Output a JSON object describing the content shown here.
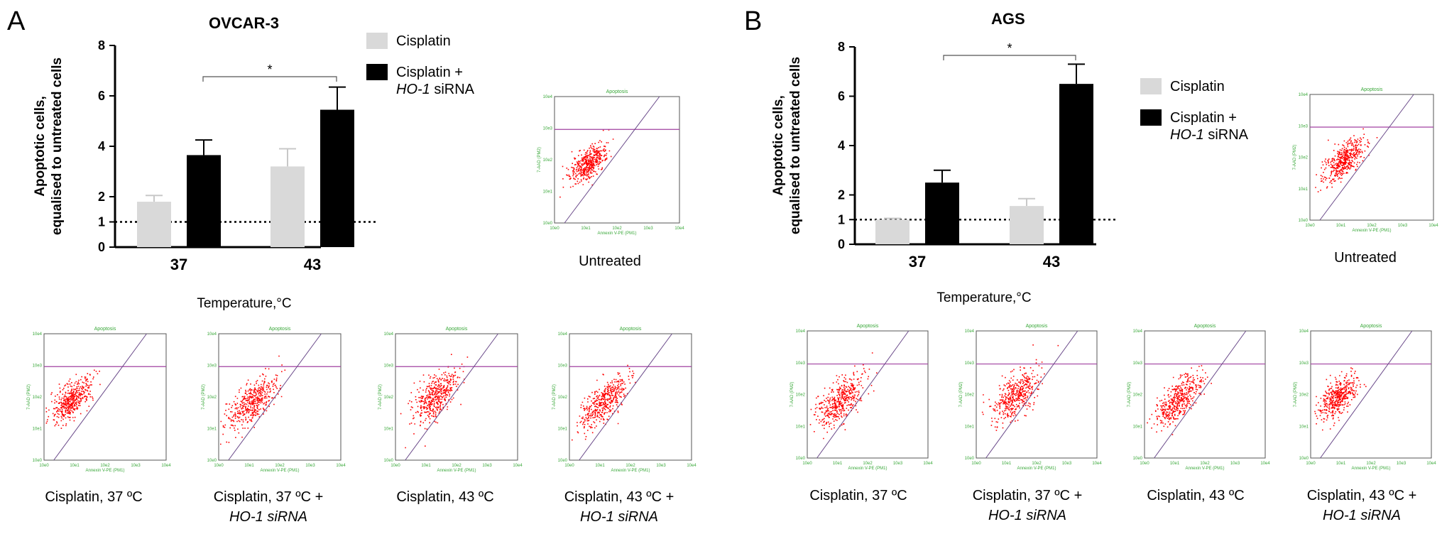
{
  "panels": [
    {
      "letter": "A",
      "title": "OVCAR-3",
      "significance": "*",
      "temperature_label": "Temperature,°C",
      "untreated_label": "Untreated",
      "captions": [
        {
          "line1": "Cisplatin, 37 ºC",
          "line2": ""
        },
        {
          "line1": "Cisplatin, 37 ºC +",
          "line2": "HO-1 siRNA"
        },
        {
          "line1": "Cisplatin, 43 ºC",
          "line2": ""
        },
        {
          "line1": "Cisplatin, 43 ºC +",
          "line2": "HO-1 siRNA"
        }
      ]
    },
    {
      "letter": "B",
      "title": "AGS",
      "significance": "*",
      "temperature_label": "Temperature,°C",
      "untreated_label": "Untreated",
      "captions": [
        {
          "line1": "Cisplatin, 37 ºC",
          "line2": ""
        },
        {
          "line1": "Cisplatin, 37 ºC +",
          "line2": "HO-1 siRNA"
        },
        {
          "line1": "Cisplatin, 43 ºC",
          "line2": ""
        },
        {
          "line1": "Cisplatin, 43 ºC +",
          "line2": "HO-1 siRNA"
        }
      ]
    }
  ],
  "flow_plot": {
    "title": "Apoptosis",
    "xlabel": "Annexin V-PE (PM1)",
    "ylabel": "7-AAD (PM2)",
    "ticks": [
      "10e0",
      "10e1",
      "10e2",
      "10e3",
      "10e4"
    ],
    "dot_color": "#ff0000",
    "gate_line_color": "#a040a0",
    "diag_line_color": "#6a4a8a"
  },
  "chart_data": [
    {
      "type": "bar",
      "title": "OVCAR-3",
      "xlabel": "Temperature,°C",
      "ylabel": "Apoptotic cells, equalised to untreated cells",
      "categories": [
        "37",
        "43"
      ],
      "yticks": [
        "0",
        "1",
        "2",
        "4",
        "6",
        "8"
      ],
      "ylim": [
        0,
        8
      ],
      "reference_line": 1,
      "series": [
        {
          "name": "Cisplatin",
          "color": "#d9d9d9",
          "values": [
            1.8,
            3.2
          ],
          "errors": [
            0.25,
            0.7
          ]
        },
        {
          "name": "Cisplatin + HO-1 siRNA",
          "name_line1": "Cisplatin +",
          "name_italic": "HO-1",
          "name_rest": " siRNA",
          "color": "#000000",
          "values": [
            3.65,
            5.45
          ],
          "errors": [
            0.6,
            0.9
          ]
        }
      ],
      "legend_position": "top-right"
    },
    {
      "type": "bar",
      "title": "AGS",
      "xlabel": "Temperature,°C",
      "ylabel": "Apoptotic cells, equalised to untreated cells",
      "categories": [
        "37",
        "43"
      ],
      "yticks": [
        "0",
        "1",
        "2",
        "4",
        "6",
        "8"
      ],
      "ylim": [
        0,
        8
      ],
      "reference_line": 1,
      "series": [
        {
          "name": "Cisplatin",
          "color": "#d9d9d9",
          "values": [
            1.0,
            1.55
          ],
          "errors": [
            0.05,
            0.3
          ]
        },
        {
          "name": "Cisplatin + HO-1 siRNA",
          "name_line1": "Cisplatin +",
          "name_italic": "HO-1",
          "name_rest": " siRNA",
          "color": "#000000",
          "values": [
            2.5,
            6.5
          ],
          "errors": [
            0.5,
            0.8
          ]
        }
      ],
      "legend_position": "top-right"
    }
  ]
}
